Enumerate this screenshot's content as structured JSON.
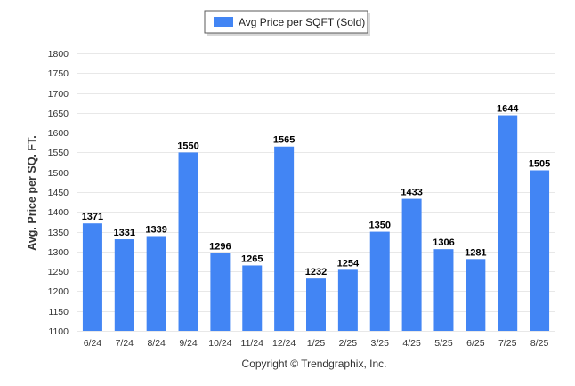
{
  "chart_data": {
    "type": "bar",
    "legend": {
      "label": "Avg Price per SQFT (Sold)",
      "placement": "top-center"
    },
    "categories": [
      "6/24",
      "7/24",
      "8/24",
      "9/24",
      "10/24",
      "11/24",
      "12/24",
      "1/25",
      "2/25",
      "3/25",
      "4/25",
      "5/25",
      "6/25",
      "7/25",
      "8/25"
    ],
    "series": [
      {
        "name": "Avg Price per SQFT (Sold)",
        "values": [
          1371,
          1331,
          1339,
          1550,
          1296,
          1265,
          1565,
          1232,
          1254,
          1350,
          1433,
          1306,
          1281,
          1644,
          1505
        ],
        "data_labels": [
          "1371",
          "1331",
          "1339",
          "1550",
          "1296",
          "1265",
          "1565",
          "1232",
          "1254",
          "1350",
          "1433",
          "1306",
          "1281",
          "1644",
          "1505"
        ]
      }
    ],
    "ylabel": "Avg. Price per SQ. FT.",
    "ylim": [
      1100,
      1800
    ],
    "yticks": [
      "1100",
      "1150",
      "1200",
      "1250",
      "1300",
      "1350",
      "1400",
      "1450",
      "1500",
      "1550",
      "1600",
      "1650",
      "1700",
      "1750",
      "1800"
    ],
    "grid": true,
    "colors": {
      "bar": "#4285f4"
    }
  },
  "footer": {
    "credit": "Copyright © Trendgraphix, Inc."
  }
}
